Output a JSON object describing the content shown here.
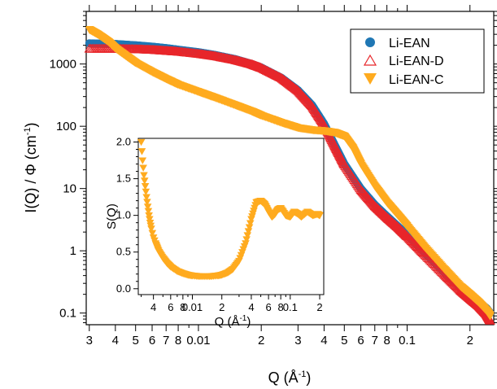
{
  "chart_data": [
    {
      "id": "main",
      "type": "scatter",
      "x_scale": "log",
      "y_scale": "log",
      "xlim": [
        0.0029,
        0.26
      ],
      "ylim": [
        0.065,
        7000
      ],
      "xlabel": "Q (Å",
      "xlabel_sup": "-1",
      "xlabel_end": ")",
      "ylabel": "I(Q) / Φ (cm",
      "ylabel_sup": "-1",
      "ylabel_end": ")",
      "grid": false,
      "legend_position": "top-right",
      "x_major_ticks": [
        {
          "value": 0.003,
          "label": "3"
        },
        {
          "value": 0.004,
          "label": "4"
        },
        {
          "value": 0.005,
          "label": "5"
        },
        {
          "value": 0.006,
          "label": "6"
        },
        {
          "value": 0.007,
          "label": "7"
        },
        {
          "value": 0.008,
          "label": "8"
        },
        {
          "value": 0.01,
          "label": "0.01"
        },
        {
          "value": 0.02,
          "label": "2"
        },
        {
          "value": 0.03,
          "label": "3"
        },
        {
          "value": 0.04,
          "label": "4"
        },
        {
          "value": 0.05,
          "label": "5"
        },
        {
          "value": 0.06,
          "label": "6"
        },
        {
          "value": 0.07,
          "label": "7"
        },
        {
          "value": 0.08,
          "label": "8"
        },
        {
          "value": 0.1,
          "label": "0.1"
        },
        {
          "value": 0.2,
          "label": "2"
        }
      ],
      "y_major_ticks": [
        {
          "value": 0.1,
          "label": "0.1"
        },
        {
          "value": 1,
          "label": "1"
        },
        {
          "value": 10,
          "label": "10"
        },
        {
          "value": 100,
          "label": "100"
        },
        {
          "value": 1000,
          "label": "1000"
        }
      ],
      "series": [
        {
          "name": "Li-EAN",
          "marker": "circle",
          "color": "#1f77b4",
          "x": [
            0.003,
            0.004,
            0.005,
            0.006,
            0.007,
            0.008,
            0.01,
            0.012,
            0.015,
            0.018,
            0.02,
            0.025,
            0.03,
            0.035,
            0.04,
            0.045,
            0.05,
            0.06,
            0.07,
            0.08,
            0.09,
            0.1,
            0.12,
            0.15,
            0.18,
            0.2,
            0.22,
            0.24,
            0.25
          ],
          "y": [
            2150,
            2100,
            2000,
            1900,
            1800,
            1700,
            1550,
            1400,
            1200,
            1000,
            880,
            600,
            380,
            220,
            110,
            50,
            25,
            10,
            5.5,
            3.6,
            2.5,
            1.8,
            0.95,
            0.45,
            0.25,
            0.19,
            0.15,
            0.12,
            0.1
          ]
        },
        {
          "name": "Li-EAN-D",
          "marker": "triangle-up-open",
          "color": "#e8262a",
          "x": [
            0.003,
            0.004,
            0.005,
            0.006,
            0.007,
            0.008,
            0.01,
            0.012,
            0.015,
            0.018,
            0.02,
            0.025,
            0.03,
            0.035,
            0.04,
            0.045,
            0.05,
            0.06,
            0.07,
            0.08,
            0.09,
            0.1,
            0.12,
            0.15,
            0.18,
            0.2,
            0.22,
            0.24,
            0.25
          ],
          "y": [
            1750,
            1750,
            1720,
            1680,
            1620,
            1570,
            1450,
            1330,
            1150,
            980,
            860,
            590,
            370,
            210,
            105,
            48,
            24,
            9.5,
            5.2,
            3.4,
            2.4,
            1.7,
            0.9,
            0.42,
            0.23,
            0.17,
            0.13,
            0.095,
            0.075
          ]
        },
        {
          "name": "Li-EAN-C",
          "marker": "triangle-down",
          "color": "#ffab1f",
          "x": [
            0.003,
            0.0033,
            0.0037,
            0.004,
            0.0045,
            0.005,
            0.006,
            0.007,
            0.008,
            0.01,
            0.012,
            0.015,
            0.018,
            0.02,
            0.025,
            0.03,
            0.035,
            0.04,
            0.045,
            0.05,
            0.055,
            0.06,
            0.07,
            0.08,
            0.09,
            0.1,
            0.12,
            0.15,
            0.18,
            0.2,
            0.22,
            0.24,
            0.25
          ],
          "y": [
            3600,
            3000,
            2300,
            1800,
            1350,
            1050,
            750,
            580,
            470,
            360,
            290,
            220,
            175,
            150,
            115,
            95,
            88,
            85,
            80,
            70,
            45,
            25,
            11,
            6,
            3.8,
            2.5,
            1.2,
            0.52,
            0.27,
            0.2,
            0.15,
            0.11,
            0.09
          ]
        }
      ]
    },
    {
      "id": "inset",
      "type": "scatter",
      "x_scale": "log",
      "y_scale": "linear",
      "xlim": [
        0.0028,
        0.22
      ],
      "ylim": [
        -0.08,
        2.05
      ],
      "xlabel": "Q (Å",
      "xlabel_sup": "-1",
      "xlabel_end": ")",
      "ylabel": "S(Q)",
      "grid": false,
      "x_major_ticks": [
        {
          "value": 0.004,
          "label": "4"
        },
        {
          "value": 0.006,
          "label": "6"
        },
        {
          "value": 0.008,
          "label": "8"
        },
        {
          "value": 0.01,
          "label": "0.01"
        },
        {
          "value": 0.02,
          "label": "2"
        },
        {
          "value": 0.04,
          "label": "4"
        },
        {
          "value": 0.06,
          "label": "6"
        },
        {
          "value": 0.08,
          "label": "8"
        },
        {
          "value": 0.1,
          "label": "0.1"
        },
        {
          "value": 0.2,
          "label": "2"
        }
      ],
      "y_major_ticks": [
        {
          "value": 0.0,
          "label": "0.0"
        },
        {
          "value": 0.5,
          "label": "0.5"
        },
        {
          "value": 1.0,
          "label": "1.0"
        },
        {
          "value": 1.5,
          "label": "1.5"
        },
        {
          "value": 2.0,
          "label": "2.0"
        }
      ],
      "series": [
        {
          "name": "Li-EAN-C",
          "marker": "triangle-down",
          "color": "#ffab1f",
          "x": [
            0.003,
            0.0031,
            0.0032,
            0.0033,
            0.0034,
            0.0035,
            0.0036,
            0.0037,
            0.0038,
            0.004,
            0.0042,
            0.0045,
            0.005,
            0.0055,
            0.006,
            0.007,
            0.008,
            0.009,
            0.01,
            0.012,
            0.015,
            0.018,
            0.02,
            0.023,
            0.026,
            0.03,
            0.035,
            0.04,
            0.045,
            0.05,
            0.055,
            0.06,
            0.065,
            0.07,
            0.075,
            0.08,
            0.09,
            0.1,
            0.11,
            0.12,
            0.13,
            0.15,
            0.17,
            0.19,
            0.2
          ],
          "y": [
            2.0,
            1.75,
            1.55,
            1.4,
            1.25,
            1.12,
            1.0,
            0.9,
            0.82,
            0.7,
            0.62,
            0.52,
            0.42,
            0.35,
            0.3,
            0.24,
            0.21,
            0.19,
            0.18,
            0.17,
            0.17,
            0.18,
            0.19,
            0.22,
            0.27,
            0.38,
            0.62,
            0.95,
            1.18,
            1.2,
            1.15,
            1.05,
            0.98,
            1.02,
            1.08,
            1.1,
            1.0,
            0.98,
            1.05,
            1.02,
            0.98,
            1.05,
            1.0,
            1.02,
            1.0
          ]
        }
      ]
    }
  ]
}
